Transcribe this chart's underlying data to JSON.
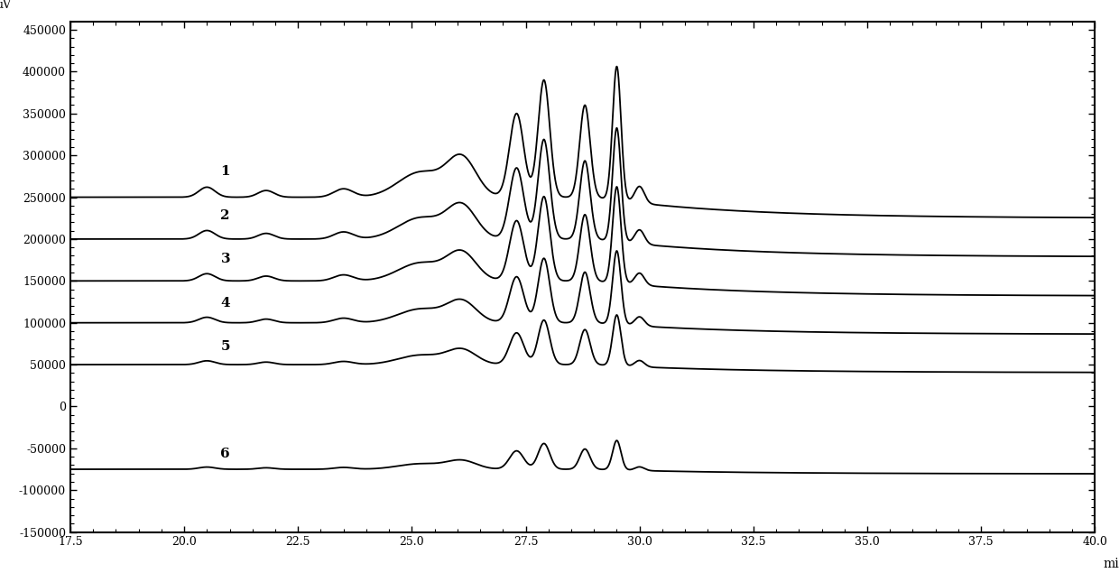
{
  "title": "",
  "xlabel": "min",
  "ylabel": "uV",
  "xlim": [
    17.5,
    40.0
  ],
  "ylim": [
    -150000,
    460000
  ],
  "yticks": [
    -150000,
    -100000,
    -50000,
    0,
    50000,
    100000,
    150000,
    200000,
    250000,
    300000,
    350000,
    400000,
    450000
  ],
  "xticks": [
    17.5,
    20.0,
    22.5,
    25.0,
    27.5,
    30.0,
    32.5,
    35.0,
    37.5,
    40.0
  ],
  "curve_offsets": [
    250000,
    200000,
    150000,
    100000,
    50000,
    -75000
  ],
  "curve_scales": [
    1.0,
    0.85,
    0.72,
    0.55,
    0.38,
    0.22
  ],
  "curve_labels": [
    "1",
    "2",
    "3",
    "4",
    "5",
    "6"
  ],
  "background_color": "#ffffff",
  "line_color": "#000000",
  "linewidth": 1.3,
  "figsize": [
    12.4,
    6.35
  ],
  "dpi": 100
}
